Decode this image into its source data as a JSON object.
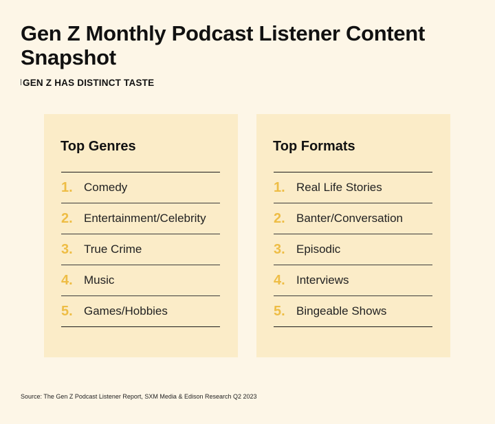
{
  "title": "Gen Z Monthly Podcast Listener Content Snapshot",
  "subtitle": "GEN Z HAS DISTINCT TASTE",
  "colors": {
    "background": "#fdf6e7",
    "card": "#fbecc8",
    "accent_number": "#eebd45"
  },
  "genres": {
    "heading": "Top Genres",
    "items": [
      {
        "num": "1.",
        "label": "Comedy"
      },
      {
        "num": "2.",
        "label": "Entertainment/Celebrity"
      },
      {
        "num": "3.",
        "label": "True Crime"
      },
      {
        "num": "4.",
        "label": "Music"
      },
      {
        "num": "5.",
        "label": "Games/Hobbies"
      }
    ]
  },
  "formats": {
    "heading": "Top Formats",
    "items": [
      {
        "num": "1.",
        "label": "Real Life Stories"
      },
      {
        "num": "2.",
        "label": "Banter/Conversation"
      },
      {
        "num": "3.",
        "label": "Episodic"
      },
      {
        "num": "4.",
        "label": "Interviews"
      },
      {
        "num": "5.",
        "label": "Bingeable Shows"
      }
    ]
  },
  "source": "Source: The Gen Z Podcast Listener Report, SXM Media & Edison Research Q2 2023"
}
